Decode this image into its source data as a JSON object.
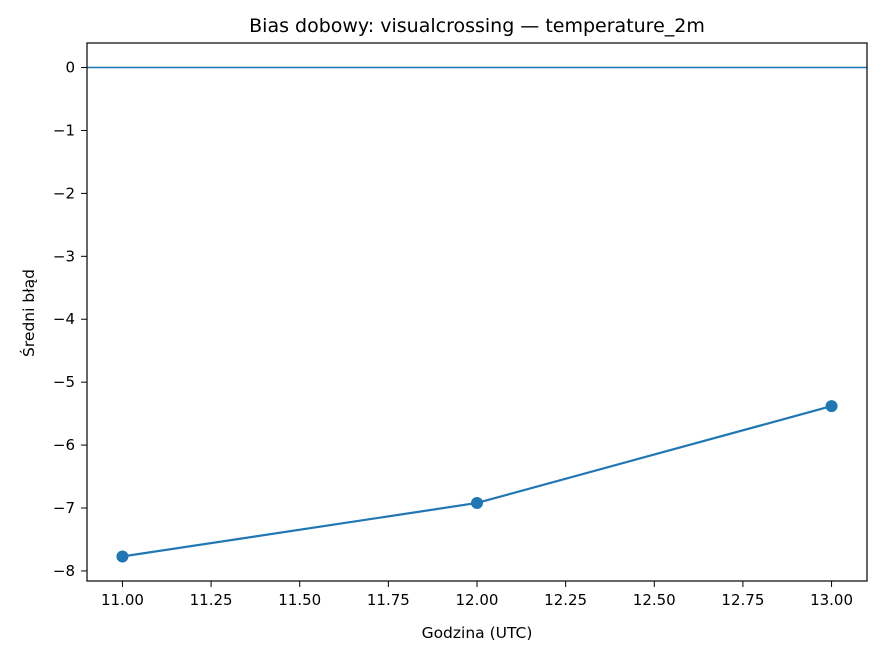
{
  "chart_data": {
    "type": "line",
    "title": "Bias dobowy: visualcrossing — temperature_2m",
    "xlabel": "Godzina (UTC)",
    "ylabel": "Średni błąd",
    "x": [
      11.0,
      12.0,
      13.0
    ],
    "series": [
      {
        "values": [
          -7.77,
          -6.92,
          -5.38
        ],
        "color": "#1f77b4",
        "marker": "circle"
      }
    ],
    "reference_line": {
      "y": 0,
      "color": "#1f77b4"
    },
    "xlim": [
      10.9,
      13.1
    ],
    "ylim": [
      -8.16,
      0.39
    ],
    "xticks": [
      11.0,
      11.25,
      11.5,
      11.75,
      12.0,
      12.25,
      12.5,
      12.75,
      13.0
    ],
    "xtick_labels": [
      "11.00",
      "11.25",
      "11.50",
      "11.75",
      "12.00",
      "12.25",
      "12.50",
      "12.75",
      "13.00"
    ],
    "yticks": [
      0,
      -1,
      -2,
      -3,
      -4,
      -5,
      -6,
      -7,
      -8
    ],
    "ytick_labels": [
      "0",
      "−1",
      "−2",
      "−3",
      "−4",
      "−5",
      "−6",
      "−7",
      "−8"
    ],
    "grid": false,
    "legend": "none"
  }
}
